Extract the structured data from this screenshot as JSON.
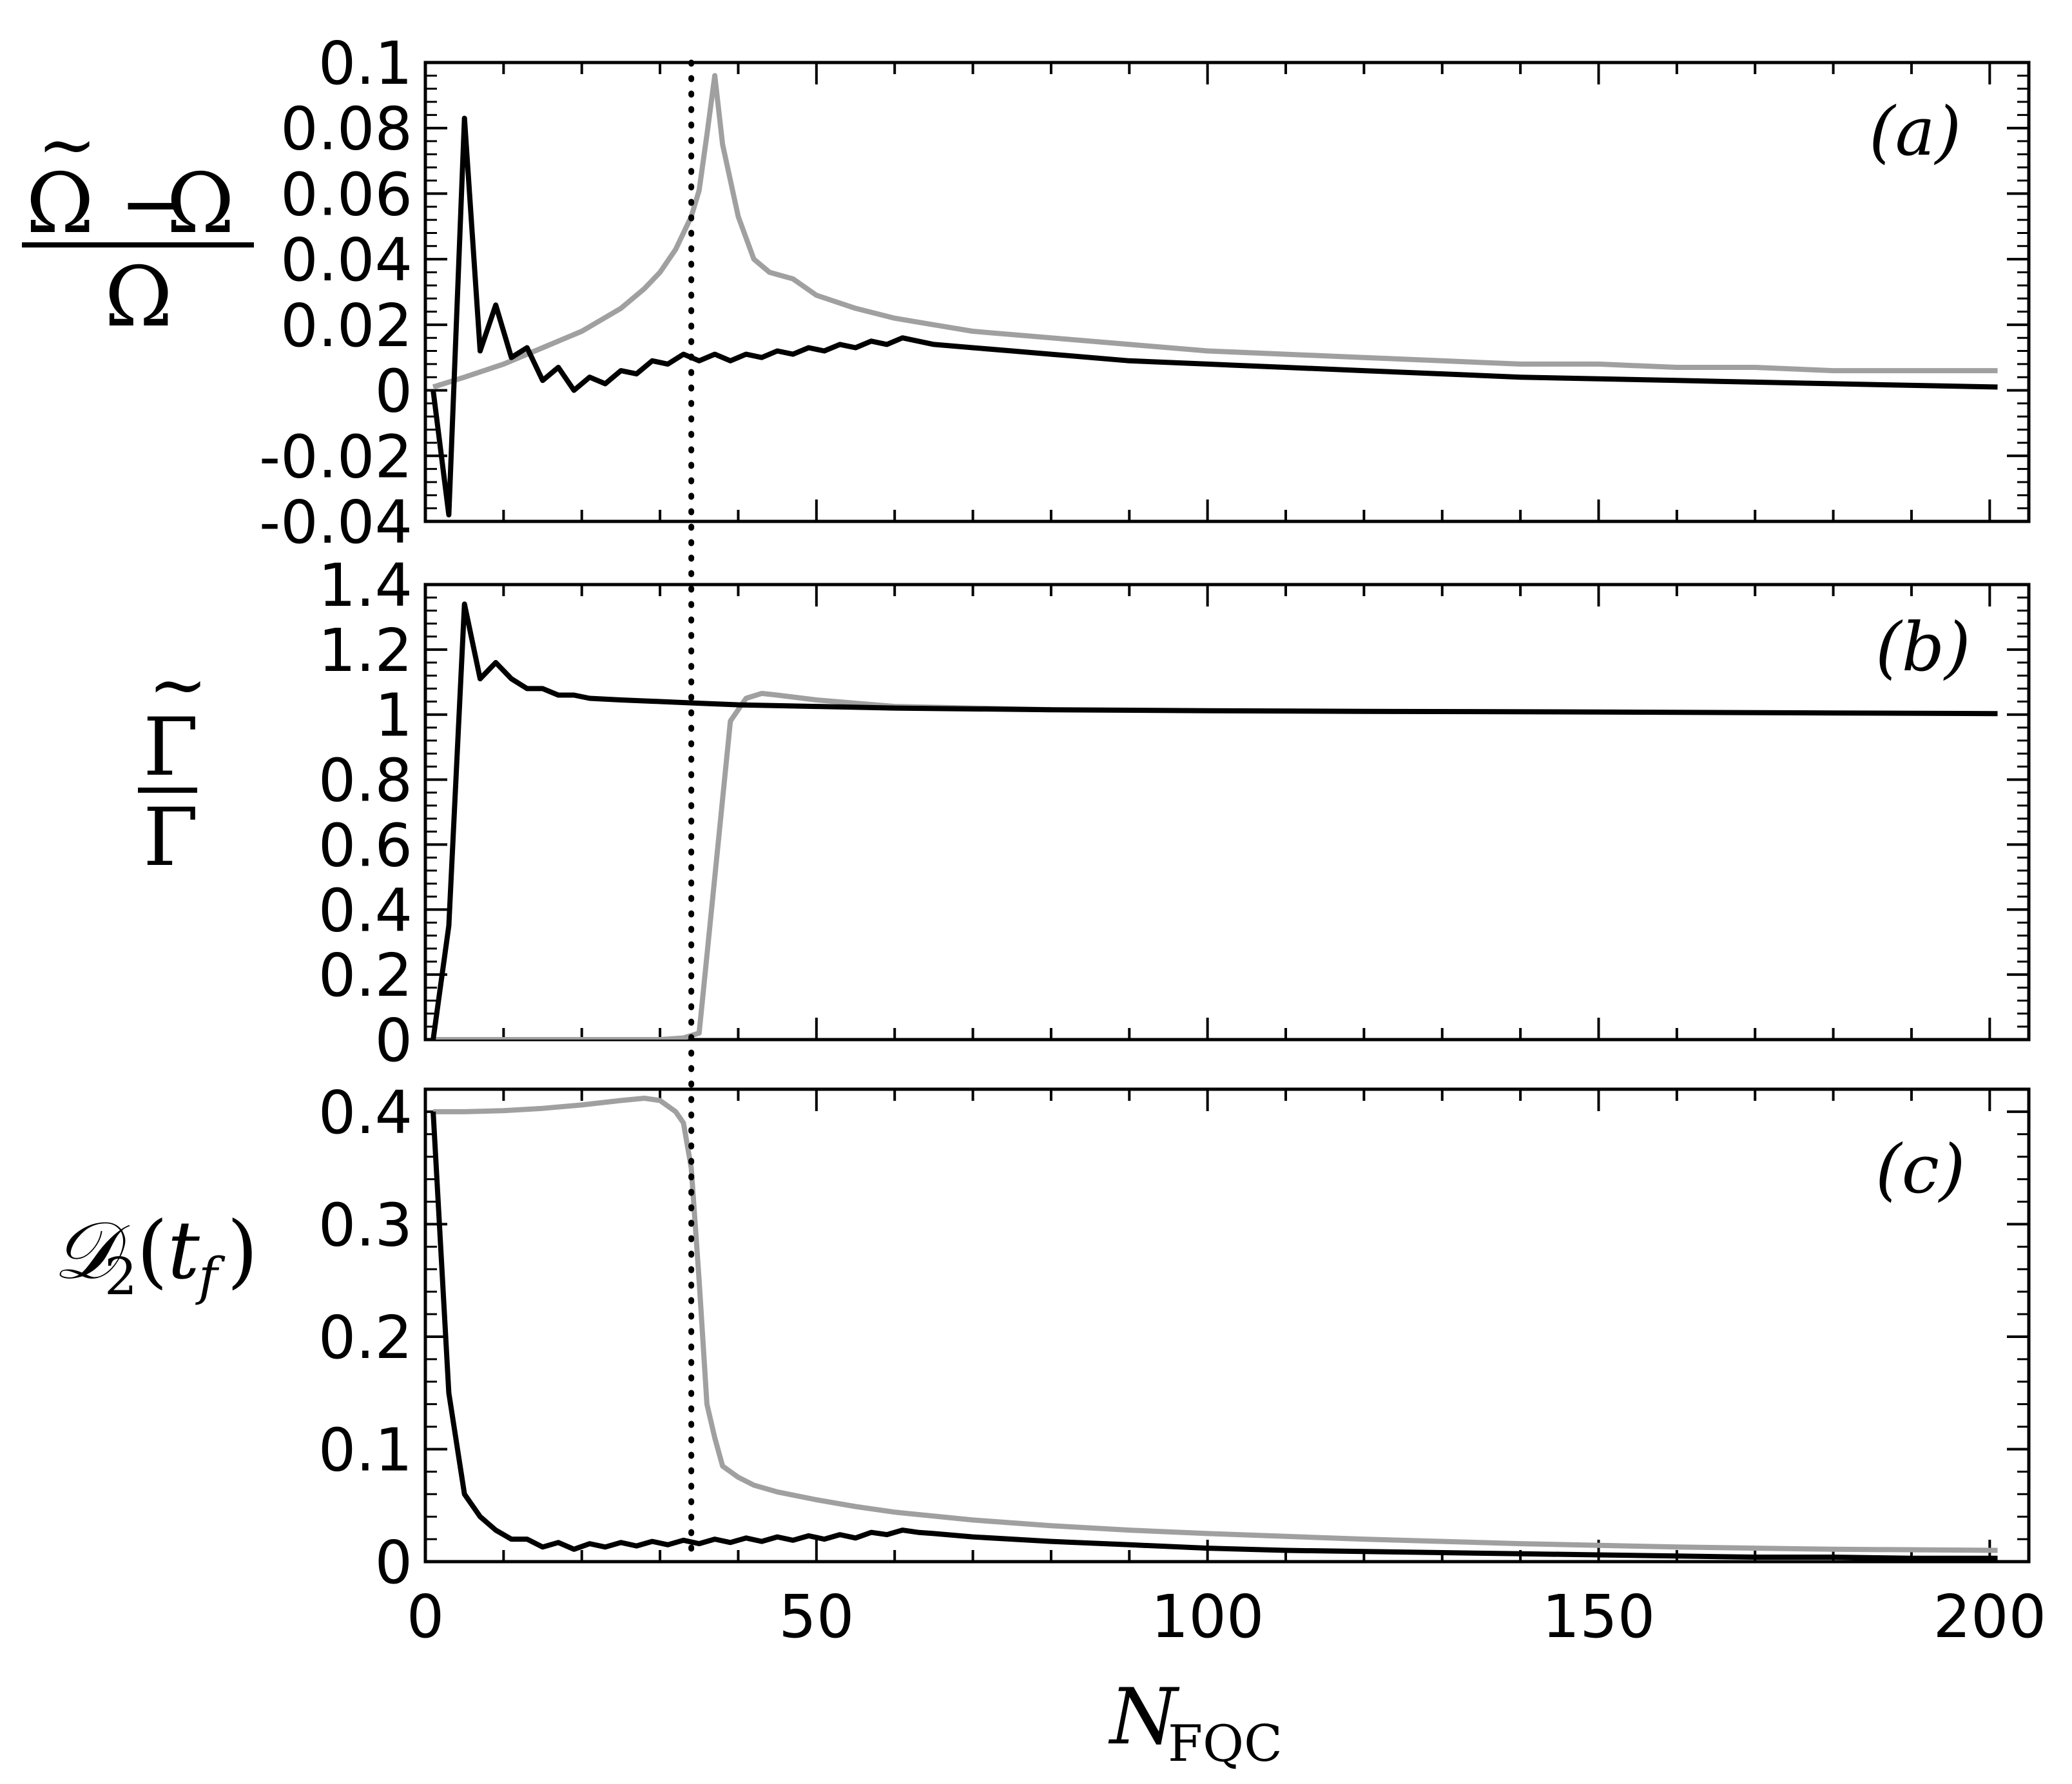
{
  "figure": {
    "xlabel_main": "N",
    "xlabel_sub": "FQC",
    "x_ticks": [
      "0",
      "50",
      "100",
      "150",
      "200"
    ],
    "marker_x": 34
  },
  "chart_data": [
    {
      "type": "line",
      "panel": "(a)",
      "ylabel": "(Ω̃−Ω)/Ω",
      "xlim": [
        0,
        205
      ],
      "ylim": [
        -0.04,
        0.1
      ],
      "y_ticks": [
        "0.1",
        "0.08",
        "0.06",
        "0.04",
        "0.02",
        "0",
        "-0.02",
        "-0.04"
      ],
      "colors": [
        "#000000",
        "#a0a0a0"
      ],
      "series": [
        {
          "x": [
            1,
            3,
            5,
            7,
            9,
            11,
            13,
            15,
            17,
            19,
            21,
            23,
            25,
            27,
            29,
            31,
            33,
            35,
            37,
            39,
            41,
            43,
            45,
            47,
            49,
            51,
            53,
            55,
            57,
            59,
            61,
            63,
            65,
            70,
            75,
            80,
            90,
            100,
            110,
            120,
            130,
            140,
            150,
            160,
            170,
            180,
            190,
            201
          ],
          "values": [
            0.0,
            -0.038,
            0.083,
            0.012,
            0.026,
            0.01,
            0.013,
            0.003,
            0.007,
            0.0,
            0.004,
            0.002,
            0.006,
            0.005,
            0.009,
            0.008,
            0.011,
            0.009,
            0.011,
            0.009,
            0.011,
            0.01,
            0.012,
            0.011,
            0.013,
            0.012,
            0.014,
            0.013,
            0.015,
            0.014,
            0.016,
            0.015,
            0.014,
            0.013,
            0.012,
            0.011,
            0.009,
            0.008,
            0.007,
            0.006,
            0.005,
            0.004,
            0.0035,
            0.003,
            0.0025,
            0.002,
            0.0015,
            0.001
          ]
        },
        {
          "x": [
            1,
            5,
            10,
            15,
            20,
            25,
            28,
            30,
            32,
            34,
            35,
            36,
            37,
            38,
            40,
            42,
            44,
            47,
            50,
            55,
            60,
            65,
            70,
            80,
            90,
            100,
            110,
            120,
            130,
            140,
            150,
            160,
            170,
            180,
            190,
            201
          ],
          "values": [
            0.001,
            0.004,
            0.008,
            0.013,
            0.018,
            0.025,
            0.031,
            0.036,
            0.043,
            0.053,
            0.061,
            0.078,
            0.096,
            0.075,
            0.053,
            0.04,
            0.036,
            0.034,
            0.029,
            0.025,
            0.022,
            0.02,
            0.018,
            0.016,
            0.014,
            0.012,
            0.011,
            0.01,
            0.009,
            0.008,
            0.008,
            0.007,
            0.007,
            0.006,
            0.006,
            0.006
          ]
        }
      ]
    },
    {
      "type": "line",
      "panel": "(b)",
      "ylabel": "Γ̃/Γ",
      "xlim": [
        0,
        205
      ],
      "ylim": [
        0,
        1.4
      ],
      "y_ticks": [
        "1.4",
        "1.2",
        "1",
        "0.8",
        "0.6",
        "0.4",
        "0.2",
        "0"
      ],
      "colors": [
        "#000000",
        "#a0a0a0"
      ],
      "series": [
        {
          "x": [
            1,
            3,
            5,
            7,
            9,
            11,
            13,
            15,
            17,
            19,
            21,
            25,
            30,
            35,
            40,
            50,
            60,
            80,
            100,
            120,
            150,
            180,
            201
          ],
          "values": [
            0.0,
            0.35,
            1.34,
            1.11,
            1.16,
            1.11,
            1.08,
            1.08,
            1.06,
            1.06,
            1.05,
            1.045,
            1.04,
            1.035,
            1.03,
            1.025,
            1.02,
            1.015,
            1.012,
            1.01,
            1.008,
            1.005,
            1.003
          ]
        },
        {
          "x": [
            1,
            10,
            20,
            30,
            33,
            35,
            37,
            39,
            41,
            43,
            45,
            50,
            55,
            60,
            70,
            80
          ],
          "values": [
            0.0,
            0.0,
            0.0,
            0.0,
            0.005,
            0.02,
            0.5,
            0.98,
            1.05,
            1.065,
            1.06,
            1.045,
            1.035,
            1.025,
            1.02,
            1.015
          ]
        }
      ]
    },
    {
      "type": "line",
      "panel": "(c)",
      "ylabel": "D₂(t_f)",
      "xlim": [
        0,
        205
      ],
      "ylim": [
        0,
        0.42
      ],
      "y_ticks": [
        "0.4",
        "0.3",
        "0.2",
        "0.1",
        "0"
      ],
      "colors": [
        "#000000",
        "#a0a0a0"
      ],
      "series": [
        {
          "x": [
            1,
            3,
            5,
            7,
            9,
            11,
            13,
            15,
            17,
            19,
            21,
            23,
            25,
            27,
            29,
            31,
            33,
            35,
            37,
            39,
            41,
            43,
            45,
            47,
            49,
            51,
            53,
            55,
            57,
            59,
            61,
            63,
            65,
            70,
            80,
            90,
            100,
            110,
            120,
            130,
            140,
            150,
            160,
            170,
            180,
            190,
            201
          ],
          "values": [
            0.4,
            0.15,
            0.06,
            0.04,
            0.028,
            0.02,
            0.02,
            0.013,
            0.017,
            0.011,
            0.016,
            0.013,
            0.017,
            0.014,
            0.018,
            0.015,
            0.019,
            0.016,
            0.02,
            0.017,
            0.021,
            0.018,
            0.022,
            0.019,
            0.023,
            0.02,
            0.024,
            0.021,
            0.026,
            0.024,
            0.028,
            0.026,
            0.025,
            0.022,
            0.018,
            0.015,
            0.012,
            0.01,
            0.009,
            0.008,
            0.007,
            0.006,
            0.005,
            0.004,
            0.004,
            0.003,
            0.003
          ]
        },
        {
          "x": [
            1,
            5,
            10,
            15,
            20,
            25,
            28,
            30,
            32,
            33,
            34,
            35,
            36,
            37,
            38,
            40,
            42,
            45,
            50,
            55,
            60,
            70,
            80,
            90,
            100,
            120,
            140,
            160,
            180,
            201
          ],
          "values": [
            0.4,
            0.4,
            0.401,
            0.403,
            0.406,
            0.41,
            0.412,
            0.41,
            0.4,
            0.39,
            0.35,
            0.25,
            0.14,
            0.11,
            0.085,
            0.075,
            0.068,
            0.062,
            0.055,
            0.049,
            0.044,
            0.037,
            0.032,
            0.028,
            0.025,
            0.02,
            0.016,
            0.013,
            0.011,
            0.01
          ]
        }
      ]
    }
  ]
}
